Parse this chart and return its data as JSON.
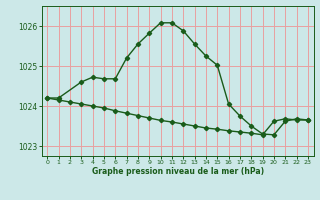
{
  "background_color": "#cce8e8",
  "grid_color": "#e8a0a0",
  "line_color": "#1a5c1a",
  "xlabel": "Graphe pression niveau de la mer (hPa)",
  "ylim": [
    1022.75,
    1026.5
  ],
  "yticks": [
    1023,
    1024,
    1025,
    1026
  ],
  "xticks": [
    0,
    1,
    2,
    3,
    4,
    5,
    6,
    7,
    8,
    9,
    10,
    11,
    12,
    13,
    14,
    15,
    16,
    17,
    18,
    19,
    20,
    21,
    22,
    23
  ],
  "line1_x": [
    0,
    1,
    3,
    4,
    5,
    6,
    7,
    8,
    9,
    10,
    11,
    12,
    13,
    14,
    15,
    16,
    17,
    18,
    19,
    20,
    21,
    22,
    23
  ],
  "line1_y": [
    1024.2,
    1024.2,
    1024.6,
    1024.72,
    1024.68,
    1024.68,
    1025.2,
    1025.55,
    1025.82,
    1026.08,
    1026.08,
    1025.88,
    1025.55,
    1025.25,
    1025.02,
    1024.05,
    1023.75,
    1023.5,
    1023.3,
    1023.28,
    1023.62,
    1023.68,
    1023.65
  ],
  "line2_x": [
    0,
    1,
    2,
    3,
    4,
    5,
    6,
    7,
    8,
    9,
    10,
    11,
    12,
    13,
    14,
    15,
    16,
    17,
    18,
    19,
    20,
    21,
    22,
    23
  ],
  "line2_y": [
    1024.2,
    1024.15,
    1024.1,
    1024.05,
    1024.0,
    1023.95,
    1023.88,
    1023.82,
    1023.76,
    1023.7,
    1023.64,
    1023.6,
    1023.55,
    1023.5,
    1023.45,
    1023.42,
    1023.38,
    1023.35,
    1023.32,
    1023.28,
    1023.62,
    1023.68,
    1023.65,
    1023.65
  ]
}
